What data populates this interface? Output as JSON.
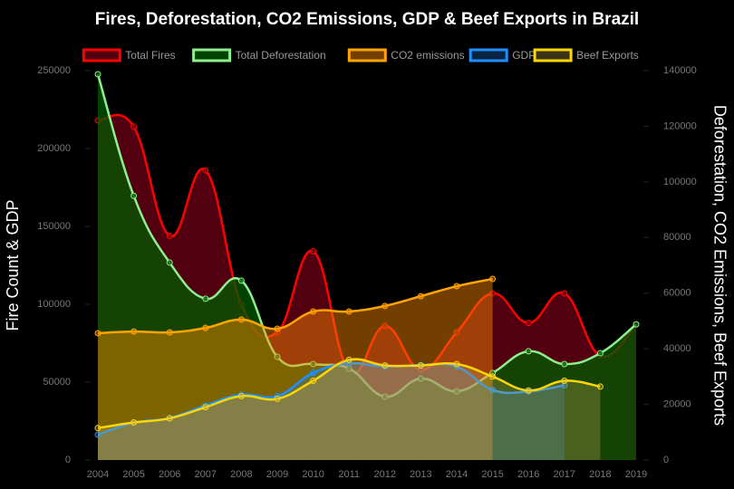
{
  "chart_data": {
    "type": "area",
    "title": "Fires, Deforestation, CO2 Emissions, GDP & Beef Exports in Brazil",
    "y_label": "Fire Count & GDP",
    "y2_label": "Deforestation, CO2 Emissions, Beef Exports",
    "categories": [
      "2004",
      "2005",
      "2006",
      "2007",
      "2008",
      "2009",
      "2010",
      "2011",
      "2012",
      "2013",
      "2014",
      "2015",
      "2016",
      "2017",
      "2018",
      "2019"
    ],
    "ylim": [
      0,
      250000
    ],
    "yticks": [
      0,
      50000,
      100000,
      150000,
      200000,
      250000
    ],
    "y2lim": [
      0,
      140000
    ],
    "y2ticks": [
      0,
      20000,
      40000,
      60000,
      80000,
      100000,
      120000,
      140000
    ],
    "series": [
      {
        "name": "Total Fires",
        "color": "#ff0000",
        "fill": "rgba(110,0,20,0.75)",
        "values": [
          218000,
          214000,
          144000,
          186000,
          100000,
          82000,
          134000,
          57000,
          86000,
          58000,
          82000,
          107000,
          88000,
          107000,
          67000,
          87000
        ]
      },
      {
        "name": "Total Deforestation",
        "color": "#90ee90",
        "fill": "rgba(0,90,0,0.75)",
        "axis": "y2",
        "values": [
          138700,
          95000,
          71000,
          58000,
          64500,
          37100,
          34500,
          32900,
          22800,
          29300,
          24700,
          31300,
          39100,
          34500,
          38400,
          48800
        ]
      },
      {
        "name": "CO2 emissions",
        "color": "#ffa500",
        "fill": "rgba(255,140,0,0.45)",
        "axis": "y2",
        "values": [
          45600,
          46200,
          45900,
          47500,
          50500,
          47200,
          53400,
          53400,
          55400,
          58900,
          62500,
          65100,
          null,
          null,
          null,
          null
        ]
      },
      {
        "name": "GDP",
        "color": "#1e90ff",
        "fill": "rgba(30,144,255,0.25)",
        "values": [
          16300,
          24000,
          27000,
          35000,
          42000,
          41000,
          56000,
          62000,
          60000,
          61000,
          60000,
          45000,
          44000,
          48000,
          null,
          null
        ]
      },
      {
        "name": "Beef Exports",
        "color": "#ffd700",
        "fill": "rgba(200,170,90,0.3)",
        "axis": "y2",
        "values": [
          11500,
          13500,
          15000,
          19000,
          23000,
          22000,
          28500,
          36000,
          34000,
          34000,
          34500,
          30000,
          25000,
          28500,
          26400,
          null
        ]
      }
    ]
  }
}
